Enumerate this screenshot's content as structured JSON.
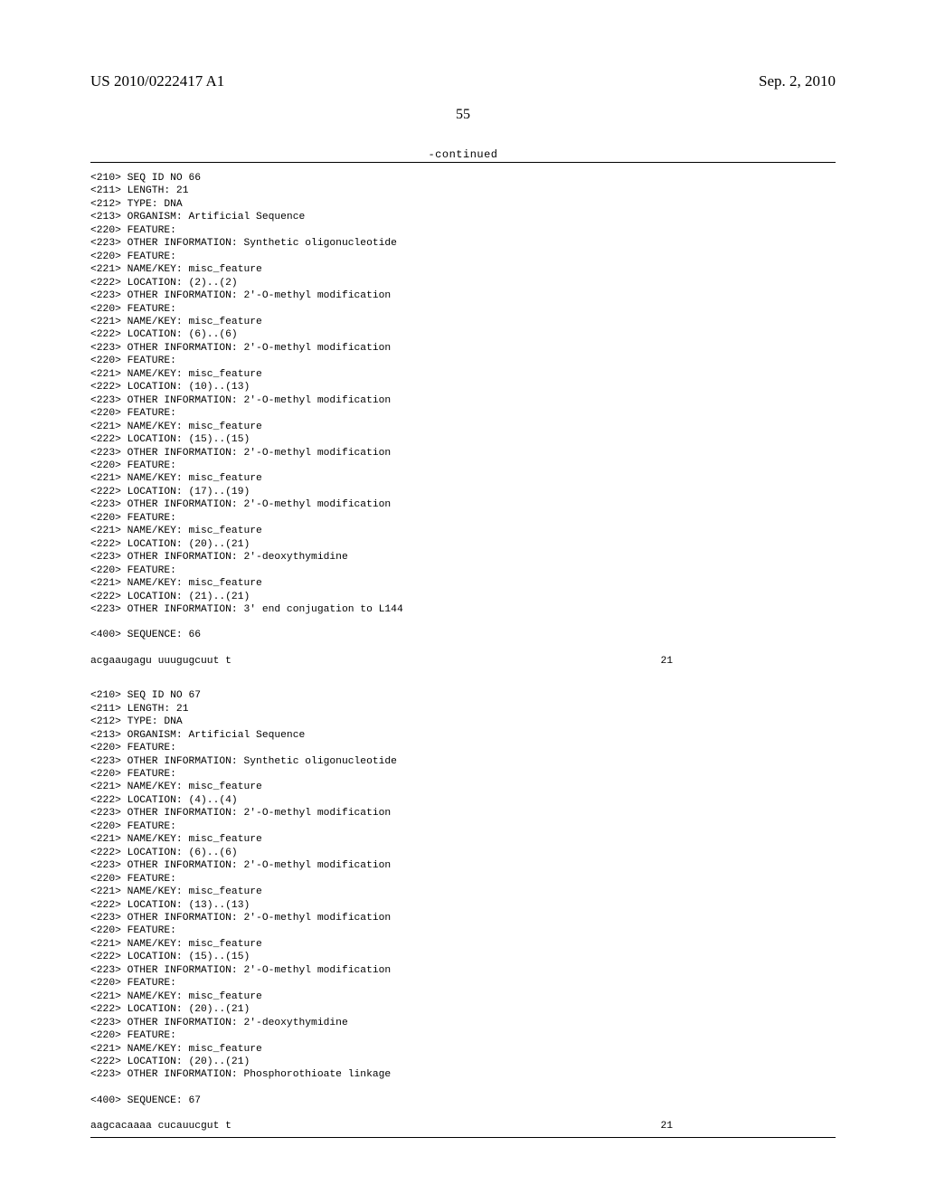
{
  "header": {
    "pub_number": "US 2010/0222417 A1",
    "pub_date": "Sep. 2, 2010"
  },
  "page_number": "55",
  "continued_label": "-continued",
  "block66": {
    "lines": [
      "<210> SEQ ID NO 66",
      "<211> LENGTH: 21",
      "<212> TYPE: DNA",
      "<213> ORGANISM: Artificial Sequence",
      "<220> FEATURE:",
      "<223> OTHER INFORMATION: Synthetic oligonucleotide",
      "<220> FEATURE:",
      "<221> NAME/KEY: misc_feature",
      "<222> LOCATION: (2)..(2)",
      "<223> OTHER INFORMATION: 2'-O-methyl modification",
      "<220> FEATURE:",
      "<221> NAME/KEY: misc_feature",
      "<222> LOCATION: (6)..(6)",
      "<223> OTHER INFORMATION: 2'-O-methyl modification",
      "<220> FEATURE:",
      "<221> NAME/KEY: misc_feature",
      "<222> LOCATION: (10)..(13)",
      "<223> OTHER INFORMATION: 2'-O-methyl modification",
      "<220> FEATURE:",
      "<221> NAME/KEY: misc_feature",
      "<222> LOCATION: (15)..(15)",
      "<223> OTHER INFORMATION: 2'-O-methyl modification",
      "<220> FEATURE:",
      "<221> NAME/KEY: misc_feature",
      "<222> LOCATION: (17)..(19)",
      "<223> OTHER INFORMATION: 2'-O-methyl modification",
      "<220> FEATURE:",
      "<221> NAME/KEY: misc_feature",
      "<222> LOCATION: (20)..(21)",
      "<223> OTHER INFORMATION: 2'-deoxythymidine",
      "<220> FEATURE:",
      "<221> NAME/KEY: misc_feature",
      "<222> LOCATION: (21)..(21)",
      "<223> OTHER INFORMATION: 3' end conjugation to L144"
    ],
    "sequence_tag": "<400> SEQUENCE: 66",
    "sequence": "acgaaugagu uuugugcuut t",
    "length_value": "21"
  },
  "block67": {
    "lines": [
      "<210> SEQ ID NO 67",
      "<211> LENGTH: 21",
      "<212> TYPE: DNA",
      "<213> ORGANISM: Artificial Sequence",
      "<220> FEATURE:",
      "<223> OTHER INFORMATION: Synthetic oligonucleotide",
      "<220> FEATURE:",
      "<221> NAME/KEY: misc_feature",
      "<222> LOCATION: (4)..(4)",
      "<223> OTHER INFORMATION: 2'-O-methyl modification",
      "<220> FEATURE:",
      "<221> NAME/KEY: misc_feature",
      "<222> LOCATION: (6)..(6)",
      "<223> OTHER INFORMATION: 2'-O-methyl modification",
      "<220> FEATURE:",
      "<221> NAME/KEY: misc_feature",
      "<222> LOCATION: (13)..(13)",
      "<223> OTHER INFORMATION: 2'-O-methyl modification",
      "<220> FEATURE:",
      "<221> NAME/KEY: misc_feature",
      "<222> LOCATION: (15)..(15)",
      "<223> OTHER INFORMATION: 2'-O-methyl modification",
      "<220> FEATURE:",
      "<221> NAME/KEY: misc_feature",
      "<222> LOCATION: (20)..(21)",
      "<223> OTHER INFORMATION: 2'-deoxythymidine",
      "<220> FEATURE:",
      "<221> NAME/KEY: misc_feature",
      "<222> LOCATION: (20)..(21)",
      "<223> OTHER INFORMATION: Phosphorothioate linkage"
    ],
    "sequence_tag": "<400> SEQUENCE: 67",
    "sequence": "aagcacaaaa cucauucgut t",
    "length_value": "21"
  }
}
